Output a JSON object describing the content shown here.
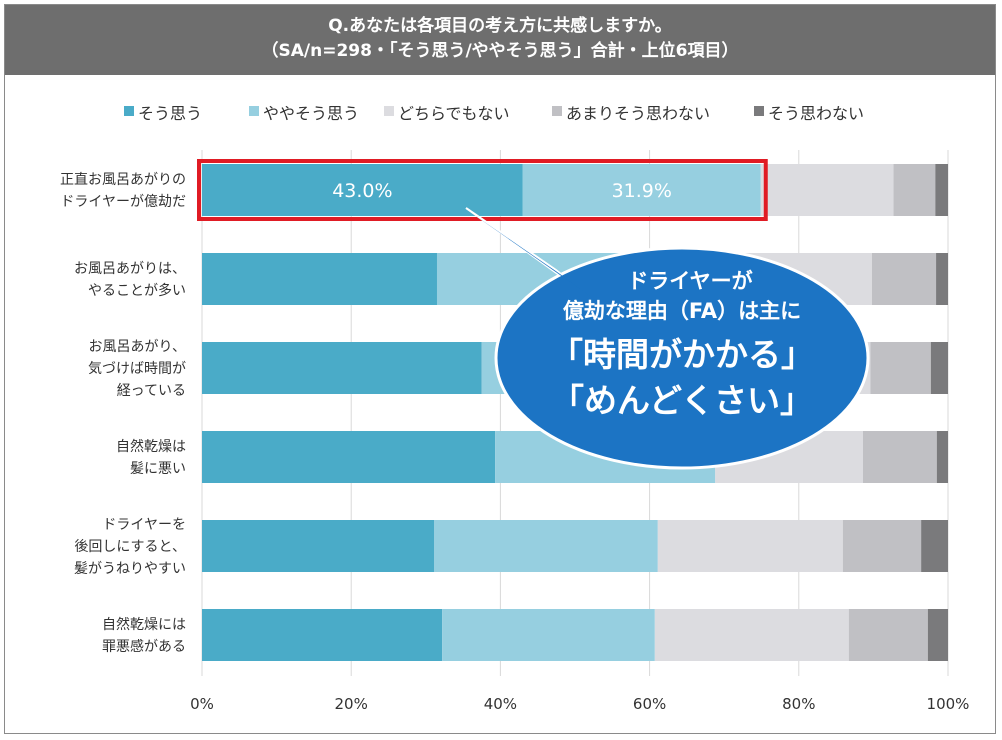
{
  "colors": {
    "s1": "#4aabc8",
    "s2": "#96cfe0",
    "s3": "#dcdce0",
    "s4": "#c0c0c4",
    "s5": "#7a7a7c",
    "highlight": "#e01b24",
    "callout": "#1c74c4",
    "title_bg": "#6e6e6e"
  },
  "chart_data": {
    "type": "bar",
    "orientation": "horizontal",
    "stacked": true,
    "title": "Q.あなたは各項目の考え方に共感しますか。",
    "subtitle": "（SA/n=298・「そう思う/ややそう思う」合計・上位6項目）",
    "legend_position": "top",
    "categories": [
      [
        "正直お風呂あがりの",
        "ドライヤーが億劫だ"
      ],
      [
        "お風呂あがりは、",
        "やることが多い"
      ],
      [
        "お風呂あがり、",
        "気づけば時間が",
        "経っている"
      ],
      [
        "自然乾燥は",
        "髪に悪い"
      ],
      [
        "ドライヤーを",
        "後回しにすると、",
        "髪がうねりやすい"
      ],
      [
        "自然乾燥には",
        "罪悪感がある"
      ]
    ],
    "series": [
      {
        "name": "そう思う",
        "values": [
          43.0,
          31.5,
          37.5,
          39.3,
          31.1,
          32.2
        ]
      },
      {
        "name": "ややそう思う",
        "values": [
          31.9,
          37.1,
          37.8,
          29.5,
          30.0,
          28.5
        ]
      },
      {
        "name": "どちらでもない",
        "values": [
          17.8,
          21.2,
          14.3,
          19.8,
          24.8,
          26.0
        ]
      },
      {
        "name": "あまりそう思わない",
        "values": [
          5.6,
          8.6,
          8.1,
          9.9,
          10.5,
          10.6
        ]
      },
      {
        "name": "そう思わない",
        "values": [
          1.7,
          1.6,
          2.3,
          1.5,
          3.6,
          2.7
        ]
      }
    ],
    "data_labels": [
      {
        "category_index": 0,
        "series_index": 0,
        "text": "43.0%"
      },
      {
        "category_index": 0,
        "series_index": 1,
        "text": "31.9%"
      }
    ],
    "x_ticks": [
      "0%",
      "20%",
      "40%",
      "60%",
      "80%",
      "100%"
    ],
    "x_tick_values": [
      0,
      20,
      40,
      60,
      80,
      100
    ],
    "xlim": [
      0,
      100
    ],
    "grid": true,
    "highlight_category_index": 0,
    "callout": {
      "lines": [
        "ドライヤーが",
        "億劫な理由（FA）は主に"
      ],
      "emphasis": [
        "「時間がかかる」",
        "「めんどくさい」"
      ]
    }
  }
}
